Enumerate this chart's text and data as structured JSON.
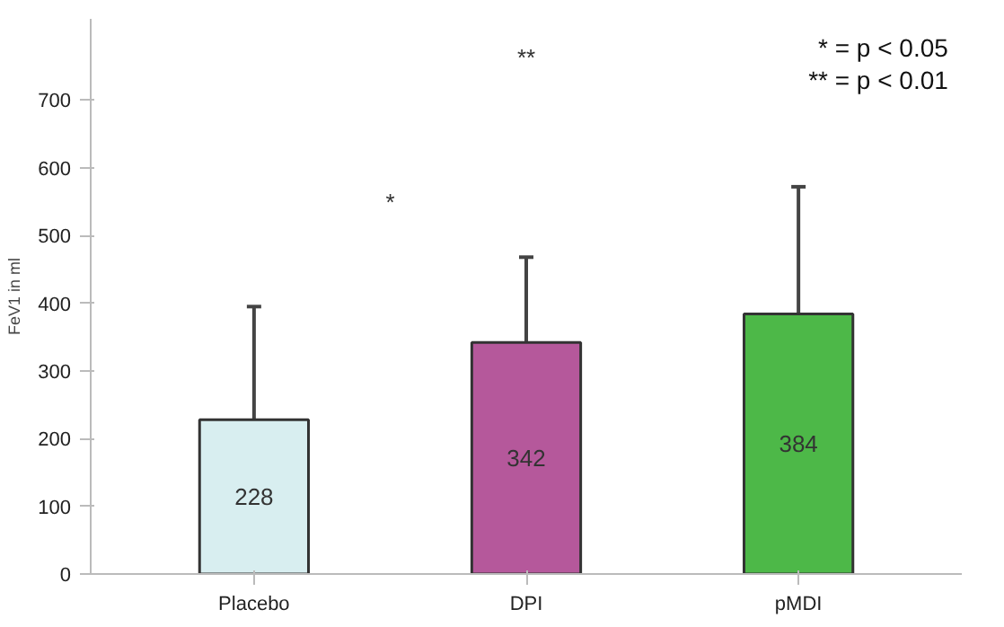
{
  "chart_data": {
    "type": "bar",
    "ylabel": "FeV1 in ml",
    "categories": [
      "Placebo",
      "DPI",
      "pMDI"
    ],
    "values": [
      228,
      342,
      384
    ],
    "colors": [
      "#d8eef0",
      "#b5589b",
      "#4db848"
    ],
    "errors": [
      [
        228,
        395
      ],
      [
        342,
        468
      ],
      [
        384,
        572
      ]
    ],
    "data_labels": true,
    "ylim": [
      0,
      820
    ],
    "yticks": [
      0,
      100,
      200,
      300,
      400,
      500,
      600,
      700
    ],
    "grid": false,
    "annotations": [
      "*",
      "**",
      "* = p < 0.05",
      "** = p < 0.01"
    ]
  }
}
